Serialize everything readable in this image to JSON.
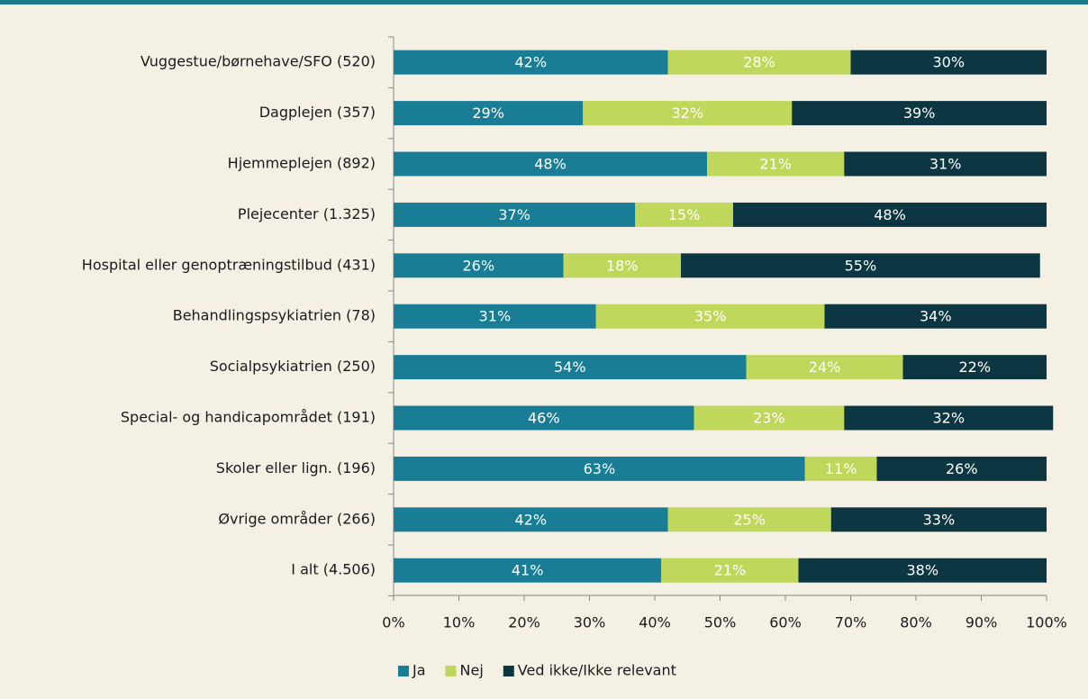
{
  "chart_data": {
    "type": "stacked-bar-horizontal",
    "categories": [
      "Vuggestue/børnehave/SFO (520)",
      "Dagplejen (357)",
      "Hjemmeplejen (892)",
      "Plejecenter (1.325)",
      "Hospital eller genoptræningstilbud (431)",
      "Behandlingspsykiatrien (78)",
      "Socialpsykiatrien (250)",
      "Special- og handicapområdet (191)",
      "Skoler eller lign. (196)",
      "Øvrige områder (266)",
      "I alt (4.506)"
    ],
    "series": [
      {
        "name": "Ja",
        "color": "#1a7d96",
        "values": [
          42,
          29,
          48,
          37,
          26,
          31,
          54,
          46,
          63,
          42,
          41
        ],
        "value_labels": [
          "42%",
          "29%",
          "48%",
          "37%",
          "26%",
          "31%",
          "54%",
          "46%",
          "63%",
          "42%",
          "41%"
        ]
      },
      {
        "name": "Nej",
        "color": "#bfd75b",
        "values": [
          28,
          32,
          21,
          15,
          18,
          35,
          24,
          23,
          11,
          25,
          21
        ],
        "value_labels": [
          "28%",
          "32%",
          "21%",
          "15%",
          "18%",
          "35%",
          "24%",
          "23%",
          "11%",
          "25%",
          "21%"
        ]
      },
      {
        "name": "Ved ikke/Ikke relevant",
        "color": "#0c3642",
        "values": [
          30,
          39,
          31,
          48,
          55,
          34,
          22,
          32,
          26,
          33,
          38
        ],
        "value_labels": [
          "30%",
          "39%",
          "31%",
          "48%",
          "55%",
          "34%",
          "22%",
          "32%",
          "26%",
          "33%",
          "38%"
        ]
      }
    ],
    "xlim": [
      0,
      100
    ],
    "xticks": [
      {
        "value": 0,
        "label": "0%"
      },
      {
        "value": 10,
        "label": "10%"
      },
      {
        "value": 20,
        "label": "20%"
      },
      {
        "value": 30,
        "label": "30%"
      },
      {
        "value": 40,
        "label": "40%"
      },
      {
        "value": 50,
        "label": "50%"
      },
      {
        "value": 60,
        "label": "60%"
      },
      {
        "value": 70,
        "label": "70%"
      },
      {
        "value": 80,
        "label": "80%"
      },
      {
        "value": 90,
        "label": "90%"
      },
      {
        "value": 100,
        "label": "100%"
      }
    ],
    "legend": "bottom"
  }
}
